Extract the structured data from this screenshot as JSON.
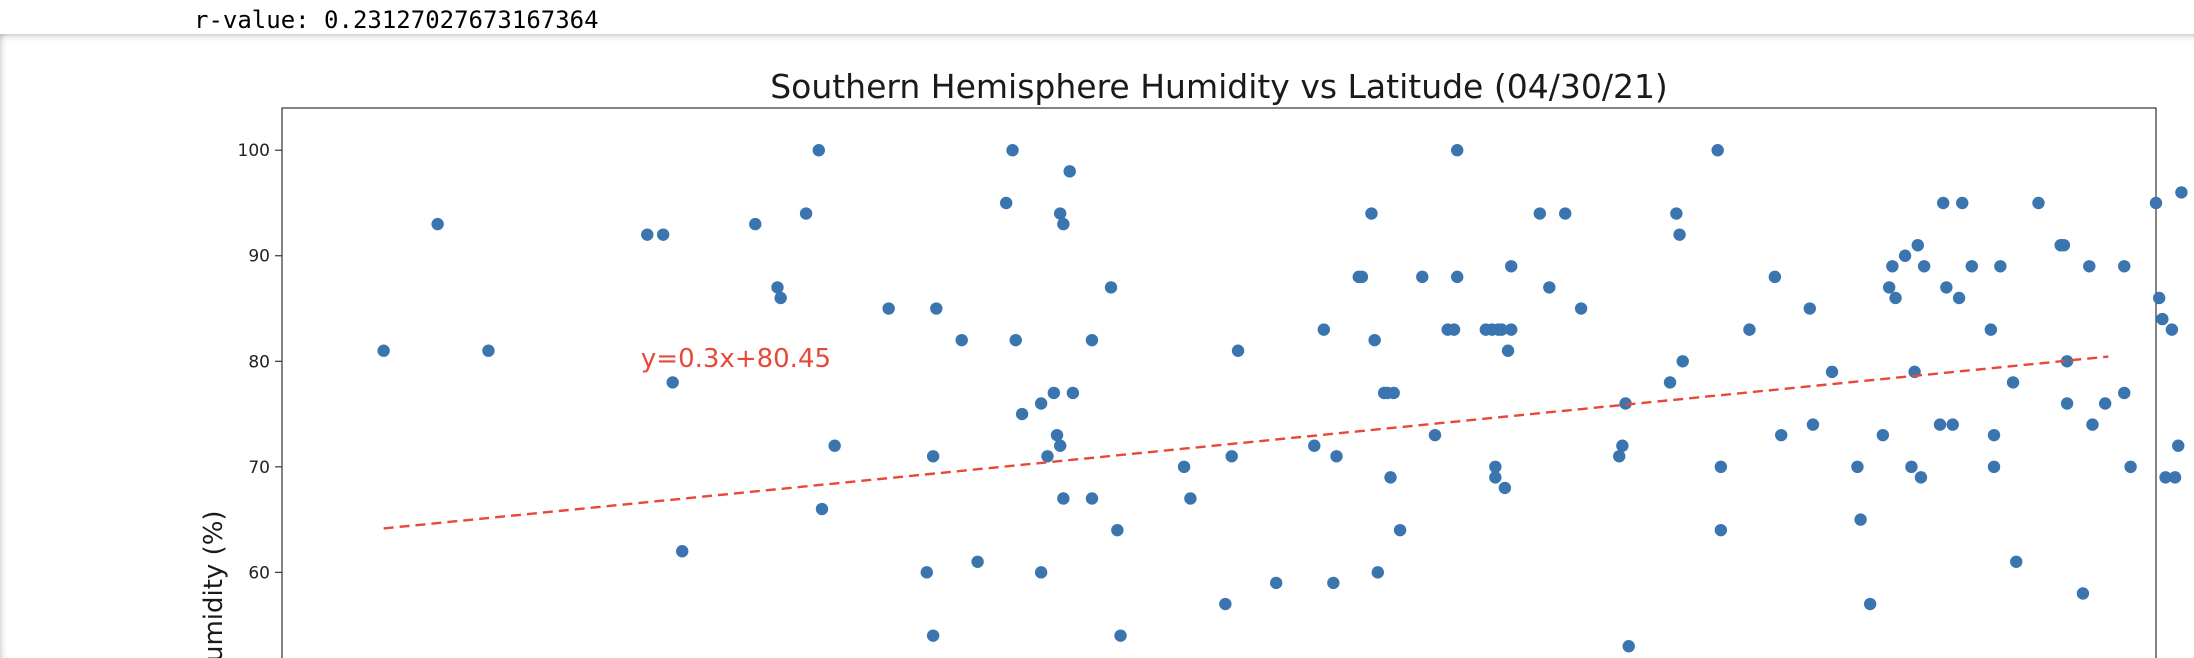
{
  "output": {
    "rvalue_text": "r-value: 0.23127027673167364"
  },
  "chart_data": {
    "type": "scatter",
    "title": "Southern Hemisphere Humidity vs Latitude (04/30/21)",
    "xlabel": "",
    "ylabel": "Humidity (%)",
    "ylim": [
      49.8,
      104
    ],
    "xlim": [
      -57.5,
      1.5
    ],
    "y_ticks": [
      60,
      70,
      80,
      90,
      100
    ],
    "grid": false,
    "marker_color": "#3b75af",
    "regression": {
      "equation": "y=0.3x+80.45",
      "slope": 0.3,
      "intercept": 80.45,
      "x_range": [
        -54.3,
        0
      ],
      "color": "#e8483a",
      "annotation_at": [
        -46.2,
        80.3
      ]
    },
    "points": [
      [
        -54.3,
        81
      ],
      [
        -52.6,
        93
      ],
      [
        -51.0,
        81
      ],
      [
        -46.0,
        92
      ],
      [
        -45.5,
        92
      ],
      [
        -45.2,
        78
      ],
      [
        -44.9,
        62
      ],
      [
        -42.6,
        93
      ],
      [
        -41.9,
        87
      ],
      [
        -41.8,
        86
      ],
      [
        -41.0,
        94
      ],
      [
        -40.6,
        100
      ],
      [
        -40.5,
        66
      ],
      [
        -40.1,
        72
      ],
      [
        -38.4,
        85
      ],
      [
        -37.2,
        60
      ],
      [
        -37.0,
        54
      ],
      [
        -37.0,
        71
      ],
      [
        -36.9,
        85
      ],
      [
        -36.1,
        82
      ],
      [
        -35.6,
        61
      ],
      [
        -34.7,
        95
      ],
      [
        -34.5,
        100
      ],
      [
        -34.4,
        82
      ],
      [
        -34.2,
        75
      ],
      [
        -33.6,
        60
      ],
      [
        -33.6,
        76
      ],
      [
        -33.4,
        71
      ],
      [
        -33.2,
        77
      ],
      [
        -33.1,
        73
      ],
      [
        -33.0,
        94
      ],
      [
        -33.0,
        72
      ],
      [
        -32.9,
        93
      ],
      [
        -32.9,
        67
      ],
      [
        -32.7,
        98
      ],
      [
        -32.6,
        77
      ],
      [
        -32.0,
        82
      ],
      [
        -32.0,
        67
      ],
      [
        -31.4,
        87
      ],
      [
        -31.2,
        64
      ],
      [
        -31.1,
        54
      ],
      [
        -29.1,
        70
      ],
      [
        -28.9,
        67
      ],
      [
        -27.8,
        57
      ],
      [
        -27.6,
        71
      ],
      [
        -27.4,
        81
      ],
      [
        -26.2,
        59
      ],
      [
        -25.0,
        72
      ],
      [
        -24.7,
        83
      ],
      [
        -24.4,
        59
      ],
      [
        -24.3,
        71
      ],
      [
        -23.6,
        88
      ],
      [
        -23.5,
        88
      ],
      [
        -23.2,
        94
      ],
      [
        -23.1,
        82
      ],
      [
        -23.0,
        60
      ],
      [
        -22.8,
        77
      ],
      [
        -22.7,
        77
      ],
      [
        -22.6,
        69
      ],
      [
        -22.5,
        77
      ],
      [
        -22.3,
        64
      ],
      [
        -21.6,
        88
      ],
      [
        -21.2,
        73
      ],
      [
        -20.8,
        83
      ],
      [
        -20.6,
        83
      ],
      [
        -20.5,
        100
      ],
      [
        -20.5,
        88
      ],
      [
        -19.6,
        83
      ],
      [
        -19.4,
        83
      ],
      [
        -19.3,
        70
      ],
      [
        -19.3,
        69
      ],
      [
        -19.2,
        83
      ],
      [
        -19.1,
        83
      ],
      [
        -19.0,
        68
      ],
      [
        -18.9,
        81
      ],
      [
        -18.8,
        83
      ],
      [
        -18.8,
        89
      ],
      [
        -17.9,
        94
      ],
      [
        -17.6,
        87
      ],
      [
        -17.1,
        94
      ],
      [
        -16.6,
        85
      ],
      [
        -15.4,
        71
      ],
      [
        -15.3,
        72
      ],
      [
        -15.2,
        76
      ],
      [
        -15.1,
        53
      ],
      [
        -13.8,
        78
      ],
      [
        -13.6,
        94
      ],
      [
        -13.5,
        92
      ],
      [
        -13.4,
        80
      ],
      [
        -12.3,
        100
      ],
      [
        -12.2,
        64
      ],
      [
        -12.2,
        70
      ],
      [
        -11.3,
        83
      ],
      [
        -10.5,
        88
      ],
      [
        -10.3,
        73
      ],
      [
        -9.4,
        85
      ],
      [
        -9.3,
        74
      ],
      [
        -8.7,
        79
      ],
      [
        -7.9,
        70
      ],
      [
        -7.8,
        65
      ],
      [
        -7.5,
        57
      ],
      [
        -7.1,
        73
      ],
      [
        -6.9,
        87
      ],
      [
        -6.8,
        89
      ],
      [
        -6.7,
        86
      ],
      [
        -6.4,
        90
      ],
      [
        -6.2,
        70
      ],
      [
        -6.1,
        79
      ],
      [
        -6.0,
        91
      ],
      [
        -5.9,
        69
      ],
      [
        -5.8,
        89
      ],
      [
        -5.3,
        74
      ],
      [
        -5.2,
        95
      ],
      [
        -5.1,
        87
      ],
      [
        -4.9,
        74
      ],
      [
        -4.7,
        86
      ],
      [
        -4.6,
        95
      ],
      [
        -4.3,
        89
      ],
      [
        -3.7,
        83
      ],
      [
        -3.6,
        70
      ],
      [
        -3.6,
        73
      ],
      [
        -3.4,
        89
      ],
      [
        -3.0,
        78
      ],
      [
        -2.9,
        61
      ],
      [
        -2.2,
        95
      ],
      [
        -1.5,
        91
      ],
      [
        -1.4,
        91
      ],
      [
        -1.3,
        80
      ],
      [
        -1.3,
        76
      ],
      [
        -0.8,
        58
      ],
      [
        -0.6,
        89
      ],
      [
        -0.5,
        74
      ],
      [
        -0.1,
        76
      ],
      [
        0.5,
        89
      ],
      [
        0.5,
        77
      ],
      [
        0.7,
        70
      ],
      [
        1.5,
        95
      ],
      [
        1.6,
        86
      ],
      [
        1.7,
        84
      ],
      [
        1.8,
        69
      ],
      [
        2.0,
        83
      ],
      [
        2.1,
        69
      ],
      [
        2.2,
        72
      ],
      [
        2.3,
        96
      ],
      [
        2.9,
        100
      ]
    ]
  }
}
